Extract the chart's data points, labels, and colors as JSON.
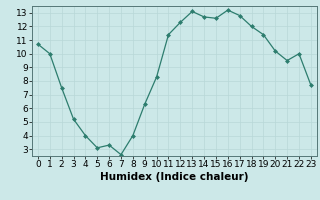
{
  "x": [
    0,
    1,
    2,
    3,
    4,
    5,
    6,
    7,
    8,
    9,
    10,
    11,
    12,
    13,
    14,
    15,
    16,
    17,
    18,
    19,
    20,
    21,
    22,
    23
  ],
  "y": [
    10.7,
    10.0,
    7.5,
    5.2,
    4.0,
    3.1,
    3.3,
    2.6,
    4.0,
    6.3,
    8.3,
    11.4,
    12.3,
    13.1,
    12.7,
    12.6,
    13.2,
    12.8,
    12.0,
    11.4,
    10.2,
    9.5,
    10.0,
    7.7
  ],
  "xlabel": "Humidex (Indice chaleur)",
  "ylim": [
    2.5,
    13.5
  ],
  "xlim": [
    -0.5,
    23.5
  ],
  "yticks": [
    3,
    4,
    5,
    6,
    7,
    8,
    9,
    10,
    11,
    12,
    13
  ],
  "xticks": [
    0,
    1,
    2,
    3,
    4,
    5,
    6,
    7,
    8,
    9,
    10,
    11,
    12,
    13,
    14,
    15,
    16,
    17,
    18,
    19,
    20,
    21,
    22,
    23
  ],
  "line_color": "#2d7d6e",
  "marker_color": "#2d7d6e",
  "bg_color": "#cce8e8",
  "grid_color": "#b8d8d8",
  "axis_bg": "#cce8e8",
  "xlabel_fontsize": 7.5,
  "tick_fontsize": 6.5
}
